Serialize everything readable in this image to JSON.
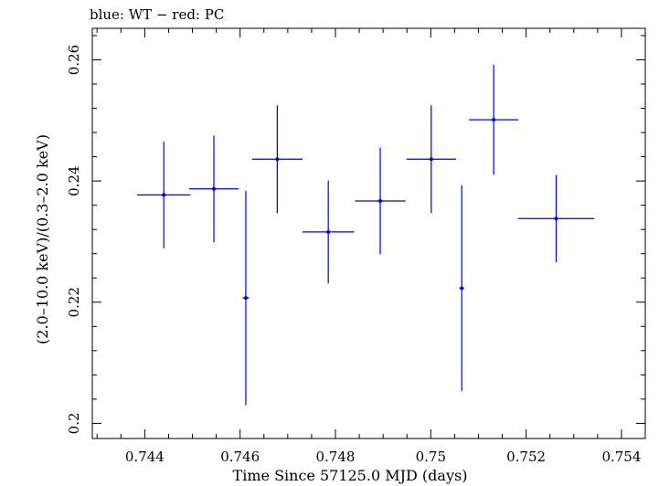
{
  "chart_data": {
    "type": "scatter",
    "title": "blue: WT − red: PC",
    "xlabel": "Time Since 57125.0 MJD (days)",
    "ylabel": "(2.0–10.0 keV)/(0.3–2.0 keV)",
    "xlim": [
      0.7429,
      0.7545
    ],
    "ylim": [
      0.1975,
      0.2652
    ],
    "x_ticks": [
      0.744,
      0.746,
      0.748,
      0.75,
      0.752,
      0.754
    ],
    "x_tick_labels": [
      "0.744",
      "0.746",
      "0.748",
      "0.75",
      "0.752",
      "0.754"
    ],
    "y_ticks": [
      0.2,
      0.22,
      0.24,
      0.26
    ],
    "y_tick_labels": [
      "0.2",
      "0.22",
      "0.24",
      "0.26"
    ],
    "grid": false,
    "series": [
      {
        "name": "WT",
        "color": "#0000dd",
        "points": [
          {
            "x": 0.7444,
            "xerr": 0.00056,
            "y": 0.2377,
            "yerr": 0.0088
          },
          {
            "x": 0.74545,
            "xerr": 0.00052,
            "y": 0.2387,
            "yerr": 0.0088
          },
          {
            "x": 0.74612,
            "xerr": 7e-05,
            "y": 0.2207,
            "yerr": 0.0177
          },
          {
            "x": 0.74678,
            "xerr": 0.00053,
            "y": 0.2436,
            "yerr": 0.0089
          },
          {
            "x": 0.74785,
            "xerr": 0.00054,
            "y": 0.2316,
            "yerr": 0.0085
          },
          {
            "x": 0.74894,
            "xerr": 0.00053,
            "y": 0.2367,
            "yerr": 0.0088
          },
          {
            "x": 0.75001,
            "xerr": 0.00052,
            "y": 0.2436,
            "yerr": 0.0089
          },
          {
            "x": 0.75065,
            "xerr": 5e-05,
            "y": 0.2223,
            "yerr": 0.017
          },
          {
            "x": 0.75132,
            "xerr": 0.00052,
            "y": 0.2501,
            "yerr": 0.0091
          },
          {
            "x": 0.75263,
            "xerr": 0.0008,
            "y": 0.2338,
            "yerr": 0.0072
          }
        ]
      }
    ]
  }
}
